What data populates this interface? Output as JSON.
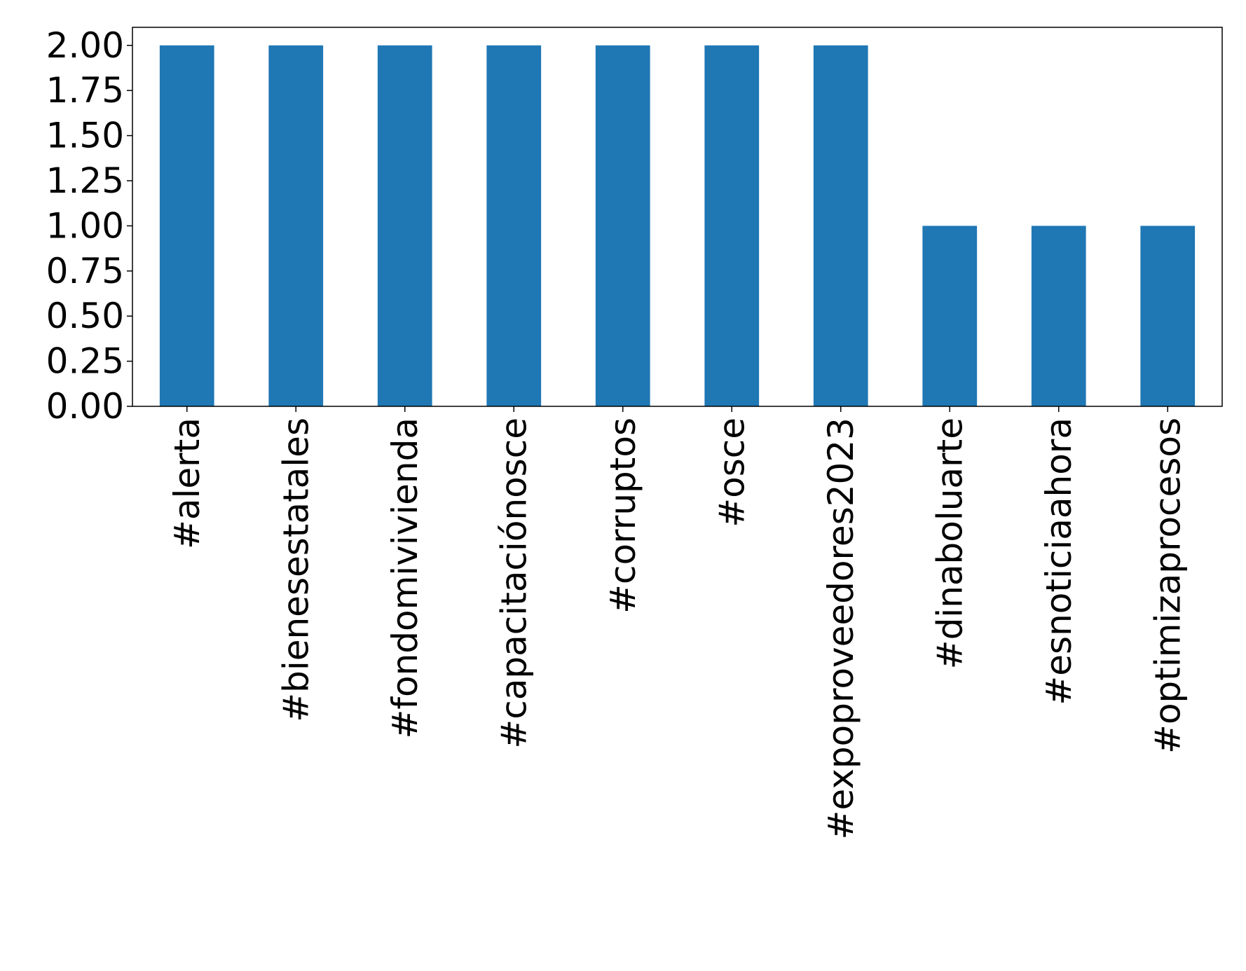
{
  "chart_data": {
    "type": "bar",
    "title": "",
    "xlabel": "",
    "ylabel": "",
    "categories": [
      "#alerta",
      "#bienesestatales",
      "#fondomivivienda",
      "#capacitaciónosce",
      "#corruptos",
      "#osce",
      "#expoproveedores2023",
      "#dinaboluarte",
      "#esnoticiaahora",
      "#optimizaprocesos"
    ],
    "values": [
      2,
      2,
      2,
      2,
      2,
      2,
      2,
      1,
      1,
      1
    ],
    "ylim": [
      0,
      2.1
    ],
    "yticks": [
      "0.00",
      "0.25",
      "0.50",
      "0.75",
      "1.00",
      "1.25",
      "1.50",
      "1.75",
      "2.00"
    ],
    "grid": false,
    "legend": "none",
    "bar_color": "#1f77b4"
  }
}
